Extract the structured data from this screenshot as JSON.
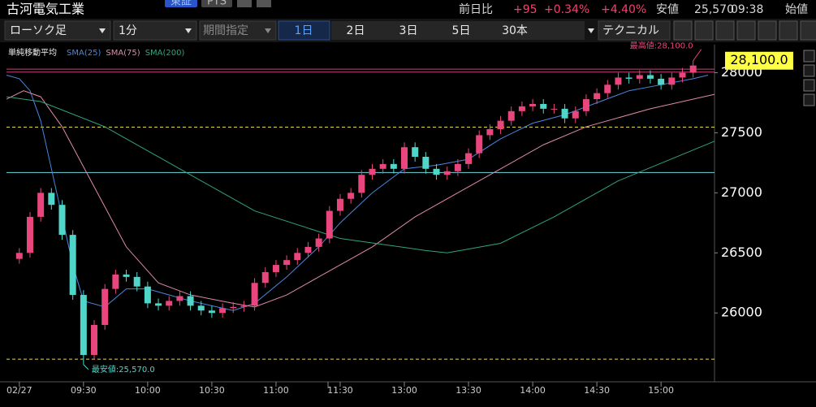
{
  "header": {
    "title": "古河電気工業",
    "exchange": "東証",
    "pts": "PTS",
    "change_label": "前日比",
    "change": "+95",
    "change_pct": "+0.34%",
    "pct2": "+4.40%",
    "low_label": "安値",
    "low": "25,570",
    "time": "09:38",
    "open_label": "始値"
  },
  "toolbar": {
    "chart_type": "ローソク足",
    "interval": "1分",
    "period": "期間指定",
    "ranges": [
      "1日",
      "2日",
      "3日",
      "5日",
      "30本"
    ],
    "technical": "テクニカル"
  },
  "chart_data": {
    "type": "candlestick",
    "legend_title": "単純移動平均",
    "up_color": "#e8467c",
    "down_color": "#4fd6c8",
    "x": [
      0,
      5,
      10,
      15,
      20,
      25,
      30,
      35,
      40,
      45,
      50,
      55,
      60,
      65,
      70,
      75,
      80,
      85,
      90,
      95,
      100,
      105,
      110,
      115,
      120,
      125,
      130,
      135,
      140,
      145,
      150,
      155,
      160,
      165,
      170,
      175,
      180,
      185,
      190,
      195,
      200,
      205,
      210,
      215,
      220,
      225,
      230,
      235,
      240,
      245,
      250,
      255,
      260,
      265,
      270,
      275,
      280,
      285,
      290,
      295,
      300,
      305,
      310,
      315
    ],
    "open": [
      26450,
      26500,
      26800,
      27000,
      26900,
      26650,
      26150,
      25650,
      25900,
      26200,
      26320,
      26300,
      26220,
      26080,
      26060,
      26100,
      26140,
      26060,
      26020,
      26000,
      26040,
      26050,
      26060,
      26250,
      26340,
      26400,
      26440,
      26500,
      26550,
      26620,
      26850,
      26950,
      27000,
      27150,
      27200,
      27240,
      27200,
      27380,
      27300,
      27200,
      27150,
      27180,
      27240,
      27330,
      27480,
      27530,
      27600,
      27680,
      27720,
      27740,
      27700,
      27700,
      27620,
      27680,
      27780,
      27830,
      27900,
      27960,
      27950,
      27980,
      27950,
      27900,
      27960,
      28000
    ],
    "high": [
      26540,
      26840,
      27040,
      27040,
      26940,
      26690,
      26190,
      25940,
      26240,
      26360,
      26360,
      26340,
      26260,
      26120,
      26140,
      26180,
      26180,
      26100,
      26060,
      26080,
      26090,
      26100,
      26290,
      26380,
      26440,
      26480,
      26540,
      26590,
      26660,
      26890,
      26990,
      27040,
      27190,
      27240,
      27280,
      27280,
      27420,
      27420,
      27340,
      27240,
      27220,
      27280,
      27370,
      27520,
      27570,
      27640,
      27720,
      27760,
      27780,
      27780,
      27740,
      27740,
      27720,
      27820,
      27870,
      27940,
      28000,
      28000,
      28020,
      28020,
      27990,
      28000,
      28040,
      28100
    ],
    "low": [
      26410,
      26460,
      26760,
      26860,
      26610,
      26110,
      25570,
      25610,
      25860,
      26160,
      26260,
      26180,
      26040,
      26020,
      26020,
      26060,
      26020,
      25980,
      25960,
      25960,
      26000,
      26010,
      26020,
      26210,
      26300,
      26360,
      26400,
      26460,
      26510,
      26580,
      26810,
      26910,
      26960,
      27110,
      27160,
      27160,
      27160,
      27260,
      27160,
      27110,
      27110,
      27140,
      27200,
      27290,
      27440,
      27490,
      27560,
      27640,
      27680,
      27660,
      27660,
      27580,
      27580,
      27640,
      27740,
      27790,
      27860,
      27910,
      27910,
      27910,
      27860,
      27860,
      27920,
      27960
    ],
    "close": [
      26500,
      26800,
      27000,
      26900,
      26650,
      26150,
      25650,
      25900,
      26200,
      26320,
      26300,
      26220,
      26080,
      26060,
      26100,
      26140,
      26060,
      26020,
      26000,
      26040,
      26050,
      26060,
      26250,
      26340,
      26400,
      26440,
      26500,
      26550,
      26620,
      26850,
      26950,
      27000,
      27150,
      27200,
      27240,
      27200,
      27380,
      27300,
      27200,
      27150,
      27180,
      27240,
      27330,
      27480,
      27530,
      27600,
      27680,
      27720,
      27740,
      27700,
      27700,
      27620,
      27680,
      27780,
      27830,
      27900,
      27960,
      27950,
      27980,
      27950,
      27900,
      27960,
      28000,
      28060
    ],
    "series": [
      {
        "name": "SMA(25)",
        "color": "#4a86e0",
        "x": [
          -6,
          0,
          5,
          10,
          15,
          20,
          25,
          30,
          40,
          50,
          60,
          70,
          80,
          90,
          100,
          110,
          125,
          140,
          150,
          165,
          180,
          195,
          210,
          225,
          240,
          255,
          270,
          285,
          300,
          315,
          322
        ],
        "values": [
          27980,
          27950,
          27850,
          27600,
          27200,
          26800,
          26400,
          26100,
          26050,
          26200,
          26200,
          26150,
          26100,
          26060,
          26020,
          26080,
          26300,
          26550,
          26750,
          27000,
          27200,
          27230,
          27280,
          27450,
          27580,
          27650,
          27750,
          27850,
          27900,
          27950,
          27980
        ]
      },
      {
        "name": "SMA(75)",
        "color": "#e08aa8",
        "x": [
          -6,
          2,
          10,
          20,
          35,
          50,
          65,
          80,
          100,
          110,
          125,
          140,
          165,
          185,
          205,
          225,
          245,
          265,
          295,
          325
        ],
        "values": [
          27780,
          27850,
          27800,
          27550,
          27050,
          26550,
          26250,
          26150,
          26080,
          26050,
          26150,
          26300,
          26550,
          26800,
          27000,
          27200,
          27400,
          27550,
          27700,
          27820
        ]
      },
      {
        "name": "SMA(200)",
        "color": "#2fa57c",
        "x": [
          -6,
          10,
          40,
          75,
          110,
          150,
          190,
          200,
          225,
          250,
          280,
          325
        ],
        "values": [
          27800,
          27760,
          27550,
          27200,
          26850,
          26620,
          26520,
          26500,
          26580,
          26800,
          27100,
          27430
        ]
      }
    ],
    "levels": [
      {
        "value": 28030,
        "color": "#d0407a",
        "dash": false
      },
      {
        "value": 28005,
        "color": "#d0407a",
        "dash": false
      },
      {
        "value": 27547,
        "color": "#e8d84a",
        "dash": true
      },
      {
        "value": 27169,
        "color": "#6fd6e0",
        "dash": false
      },
      {
        "value": 25615,
        "color": "#e8d84a",
        "dash": true
      }
    ],
    "annotations": [
      {
        "text": "最高値:28,100.0",
        "x": 315,
        "value": 28100
      },
      {
        "text": "最安値:25,570.0",
        "x": 30,
        "value": 25570
      }
    ],
    "price_tag": {
      "value": 28100,
      "label": "28,100.0"
    },
    "xlim": [
      -6,
      325
    ],
    "ylim": [
      25440,
      28220
    ],
    "yticks": [
      26000,
      26500,
      27000,
      27500,
      28000
    ],
    "xticks": [
      {
        "value": 0,
        "label": "02/27"
      },
      {
        "value": 30,
        "label": "09:30"
      },
      {
        "value": 60,
        "label": "10:00"
      },
      {
        "value": 90,
        "label": "10:30"
      },
      {
        "value": 120,
        "label": "11:00"
      },
      {
        "value": 150,
        "label": "11:30"
      },
      {
        "value": 180,
        "label": "13:00"
      },
      {
        "value": 210,
        "label": "13:30"
      },
      {
        "value": 240,
        "label": "14:00"
      },
      {
        "value": 270,
        "label": "14:30"
      },
      {
        "value": 300,
        "label": "15:00"
      }
    ]
  }
}
